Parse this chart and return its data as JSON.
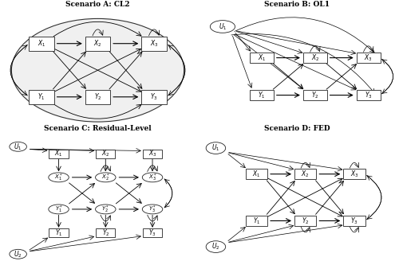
{
  "scenario_titles": [
    "Scenario A: CL2",
    "Scenario B: OL1",
    "Scenario C: Residual-Level",
    "Scenario D: FED"
  ],
  "bg_color": "#ffffff",
  "font_size_title": 6.5,
  "font_size_label": 5.5
}
